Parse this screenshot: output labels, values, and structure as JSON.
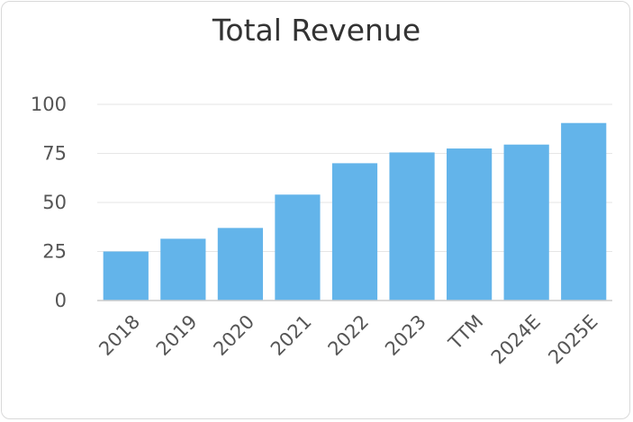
{
  "chart_data": {
    "type": "bar",
    "title": "Total Revenue",
    "categories": [
      "2018",
      "2019",
      "2020",
      "2021",
      "2022",
      "2023",
      "TTM",
      "2024E",
      "2025E"
    ],
    "values": [
      25,
      31.5,
      37,
      54,
      70,
      75.5,
      77.5,
      79.5,
      90.5
    ],
    "ylim": [
      0,
      100
    ],
    "yticks": [
      "0",
      "25",
      "50",
      "75",
      "100"
    ],
    "xlabel": "",
    "ylabel": "",
    "grid": true,
    "legend": "none",
    "colors": {
      "bar": "#63b4ea",
      "grid": "#e6e6e6",
      "axis": "#cccccc"
    }
  }
}
